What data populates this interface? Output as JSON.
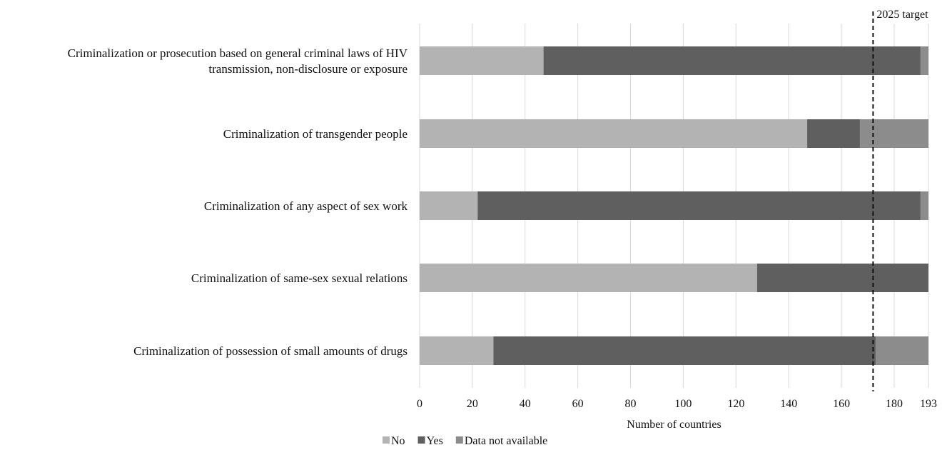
{
  "chart_data": {
    "type": "bar",
    "orientation": "horizontal",
    "stacked": true,
    "categories": [
      [
        "Criminalization or prosecution based on general criminal laws of HIV",
        "transmission, non-disclosure or exposure"
      ],
      [
        "Criminalization of transgender people"
      ],
      [
        "Criminalization of any aspect of sex work"
      ],
      [
        "Criminalization of same-sex sexual relations"
      ],
      [
        "Criminalization of possession of small amounts of drugs"
      ]
    ],
    "series": [
      {
        "name": "No",
        "color": "#b3b3b3",
        "values": [
          47,
          147,
          22,
          128,
          28
        ]
      },
      {
        "name": "Yes",
        "color": "#5f5f5f",
        "values": [
          143,
          20,
          168,
          65,
          145
        ]
      },
      {
        "name": "Data not available",
        "color": "#8c8c8c",
        "values": [
          3,
          26,
          3,
          0,
          20
        ]
      }
    ],
    "xlabel": "Number of countries",
    "xlim": [
      0,
      193
    ],
    "x_ticks": [
      0,
      20,
      40,
      60,
      80,
      100,
      120,
      140,
      160,
      180,
      193
    ],
    "grid": true,
    "target": {
      "value": 172,
      "label": "2025 target"
    },
    "legend_position": "bottom"
  }
}
